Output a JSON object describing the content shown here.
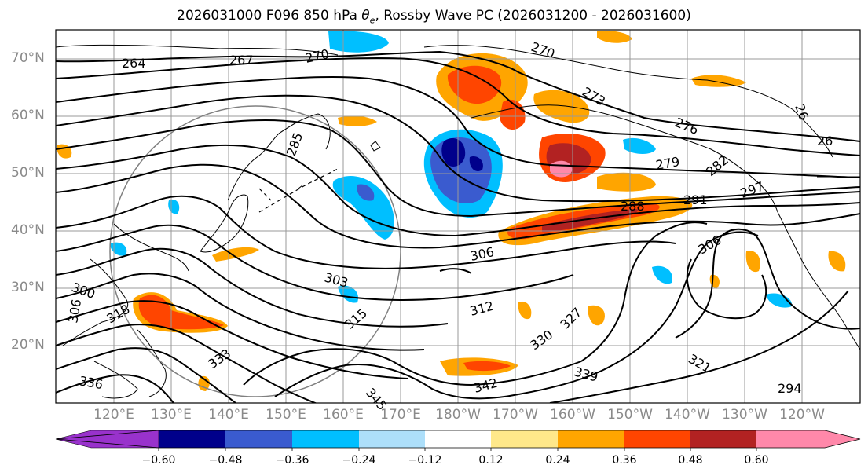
{
  "title": {
    "prefix": "2026031000 F096 850 hPa ",
    "theta": "θ",
    "sub": "e",
    "suffix": ", Rossby Wave PC (2026031200 - 2026031600)"
  },
  "lat_labels": [
    "70°N",
    "60°N",
    "50°N",
    "40°N",
    "30°N",
    "20°N"
  ],
  "lon_labels": [
    "120°E",
    "130°E",
    "140°E",
    "150°E",
    "160°E",
    "170°E",
    "180°W",
    "170°W",
    "160°W",
    "150°W",
    "140°W",
    "130°W",
    "120°W"
  ],
  "colorbar": {
    "tick_labels": [
      "−0.60",
      "−0.48",
      "−0.36",
      "−0.24",
      "−0.12",
      "0.12",
      "0.24",
      "0.36",
      "0.48",
      "0.60"
    ],
    "colors": [
      "#9932CC",
      "#00008B",
      "#3A5BCF",
      "#00BFFF",
      "#ADDFFA",
      "#FFFFFF",
      "#FFE88A",
      "#FFA500",
      "#FF4500",
      "#B22222",
      "#FF88AA"
    ]
  },
  "contour_labels": [
    "264",
    "267",
    "270",
    "270",
    "273",
    "276",
    "279",
    "282",
    "285",
    "288",
    "306",
    "306",
    "306",
    "303",
    "312",
    "315",
    "318",
    "327",
    "330",
    "333",
    "336",
    "339",
    "342",
    "345",
    "321",
    "300",
    "297",
    "294",
    "291",
    "26",
    "26"
  ],
  "styles": {
    "contour_color": "#000000",
    "grid_color": "#999999",
    "circle_color": "#808080",
    "axis_label_color": "#8a8a8a"
  }
}
